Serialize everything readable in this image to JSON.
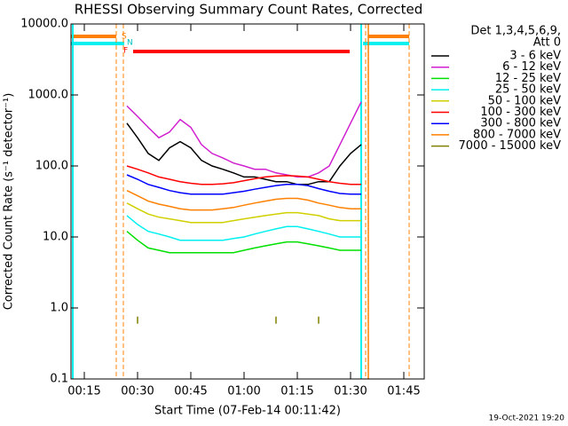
{
  "chart_data": {
    "type": "line",
    "title": "RHESSI Observing Summary Count Rates, Corrected",
    "x_label": "Start Time (07-Feb-14 00:11:42)",
    "y_label": "Corrected Count Rate (s⁻¹ detector⁻¹)",
    "legend_title": [
      "Det 1,3,4,5,6,9,",
      "Att 0"
    ],
    "footer": "19-Oct-2021 19:20",
    "annotations": [
      "S",
      "N",
      "F"
    ],
    "log_y": true,
    "legend": "right",
    "xlim": [
      11.25,
      110.75
    ],
    "xticks": [
      {
        "value": 15,
        "label": "00:15"
      },
      {
        "value": 30,
        "label": "00:30"
      },
      {
        "value": 45,
        "label": "00:45"
      },
      {
        "value": 60,
        "label": "01:00"
      },
      {
        "value": 75,
        "label": "01:15"
      },
      {
        "value": 90,
        "label": "01:30"
      },
      {
        "value": 105,
        "label": "01:45"
      }
    ],
    "ylim": [
      0.1,
      10000
    ],
    "yticks": [
      {
        "value": 10000,
        "label": "10000.0"
      },
      {
        "value": 1000,
        "label": "1000.0"
      },
      {
        "value": 100,
        "label": "100.0"
      },
      {
        "value": 10,
        "label": "10.0"
      },
      {
        "value": 1,
        "label": "1.0"
      },
      0.1
    ],
    "x": [
      27,
      30,
      33,
      36,
      39,
      42,
      45,
      48,
      51,
      54,
      57,
      60,
      63,
      66,
      69,
      72,
      75,
      78,
      81,
      84,
      87,
      90,
      93
    ],
    "series": [
      {
        "name": "3 - 6 keV",
        "color": "#000000",
        "values": [
          400,
          250,
          150,
          120,
          180,
          220,
          180,
          120,
          100,
          90,
          80,
          70,
          70,
          65,
          60,
          60,
          55,
          55,
          60,
          60,
          100,
          150,
          200
        ]
      },
      {
        "name": "6 - 12 keV",
        "color": "#d020d0",
        "values": [
          700,
          500,
          350,
          250,
          300,
          450,
          350,
          200,
          150,
          130,
          110,
          100,
          90,
          90,
          80,
          75,
          70,
          70,
          80,
          100,
          200,
          400,
          800
        ]
      },
      {
        "name": "12 - 25 keV",
        "color": "#00e000",
        "values": [
          12,
          9,
          7,
          6.5,
          6,
          6,
          6,
          6,
          6,
          6,
          6,
          6.5,
          7,
          7.5,
          8,
          8.5,
          8.5,
          8,
          7.5,
          7,
          6.5,
          6.5,
          6.5
        ]
      },
      {
        "name": "25 - 50 keV",
        "color": "#00f0f0",
        "values": [
          20,
          15,
          12,
          11,
          10,
          9,
          9,
          9,
          9,
          9,
          9.5,
          10,
          11,
          12,
          13,
          14,
          14,
          13,
          12,
          11,
          10,
          10,
          10
        ]
      },
      {
        "name": "50 - 100 keV",
        "color": "#d0d000",
        "values": [
          30,
          25,
          21,
          19,
          18,
          17,
          16,
          16,
          16,
          16,
          17,
          18,
          19,
          20,
          21,
          22,
          22,
          21,
          20,
          18,
          17,
          17,
          17
        ]
      },
      {
        "name": "100 - 300 keV",
        "color": "#ff0000",
        "values": [
          100,
          90,
          80,
          70,
          65,
          60,
          57,
          55,
          55,
          56,
          58,
          62,
          66,
          70,
          72,
          73,
          72,
          70,
          65,
          60,
          57,
          55,
          55
        ]
      },
      {
        "name": "300 - 800 keV",
        "color": "#0000ff",
        "values": [
          75,
          65,
          55,
          50,
          45,
          42,
          40,
          40,
          40,
          40,
          42,
          44,
          47,
          50,
          53,
          55,
          55,
          53,
          48,
          44,
          41,
          40,
          40
        ]
      },
      {
        "name": "800 - 7000 keV",
        "color": "#ff8000",
        "values": [
          45,
          38,
          32,
          29,
          27,
          25,
          24,
          24,
          24,
          25,
          26,
          28,
          30,
          32,
          34,
          35,
          35,
          33,
          30,
          28,
          26,
          25,
          25
        ]
      },
      {
        "name": "7000 - 15000 keV",
        "color": "#808000",
        "values": [
          null,
          0.6,
          null,
          null,
          null,
          null,
          null,
          null,
          null,
          null,
          null,
          null,
          null,
          null,
          0.6,
          null,
          null,
          null,
          0.6,
          null,
          null,
          null,
          null
        ]
      }
    ]
  }
}
